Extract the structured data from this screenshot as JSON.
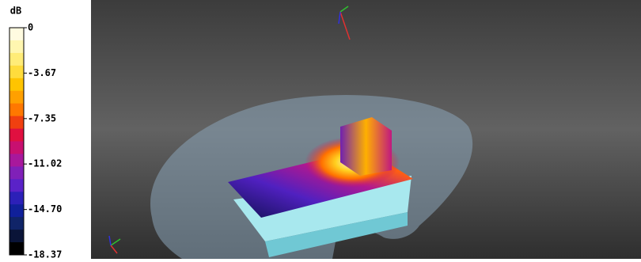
{
  "colorbar": {
    "unit": "dB",
    "ticks": [
      0,
      -3.67,
      -7.35,
      -11.02,
      {
        "value": -14.7,
        "label": "-14.70"
      },
      -18.37
    ],
    "colors": [
      "#fffbe0",
      "#fff6b0",
      "#ffec78",
      "#ffdc3c",
      "#ffc400",
      "#ffa000",
      "#ff7800",
      "#f04010",
      "#e01040",
      "#c81070",
      "#a8189c",
      "#8020b8",
      "#5a22c8",
      "#2c20b8",
      "#10209a",
      "#102468",
      "#0a1438",
      "#000000"
    ]
  }
}
